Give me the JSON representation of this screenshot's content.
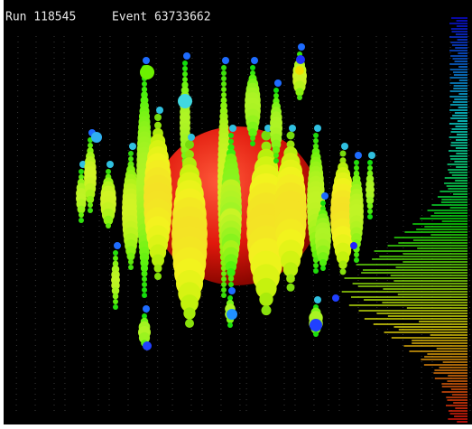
{
  "header": {
    "run": "Run 118545",
    "event": "Event 63733662"
  }
}
